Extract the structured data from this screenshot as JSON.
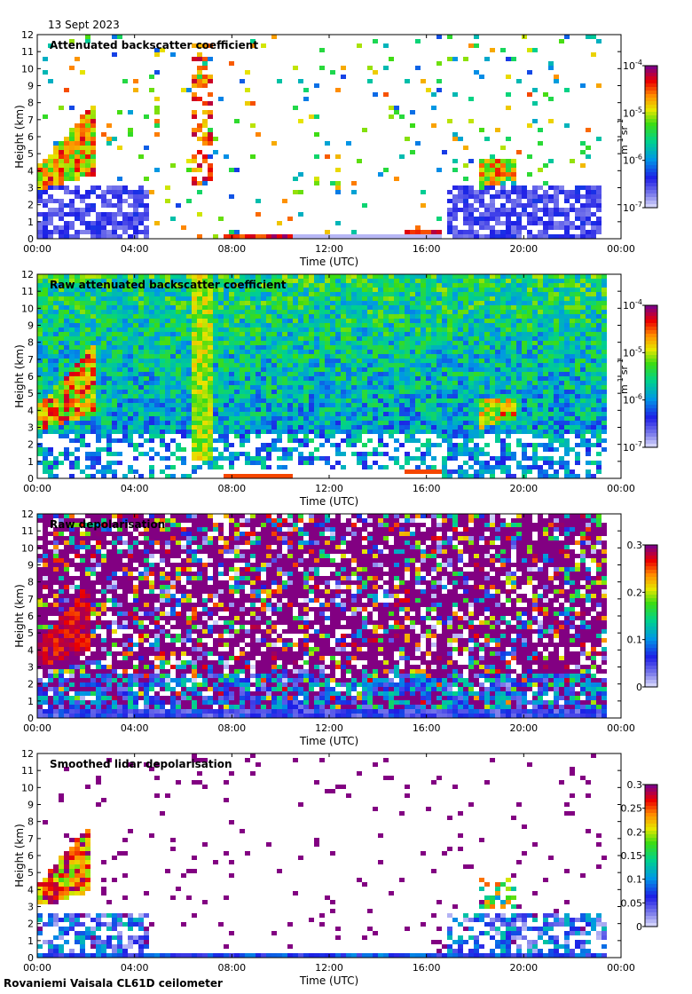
{
  "header": {
    "date": "13 Sept 2023"
  },
  "footer": {
    "site": "Rovaniemi Vaisala CL61D ceilometer"
  },
  "chart_data": [
    {
      "type": "heatmap",
      "title": "Attenuated backscatter coefficient",
      "xlabel": "Time (UTC)",
      "ylabel": "Height (km)",
      "x_ticks": [
        "00:00",
        "04:00",
        "08:00",
        "12:00",
        "16:00",
        "20:00",
        "00:00"
      ],
      "y_ticks": [
        "0",
        "1",
        "2",
        "3",
        "4",
        "5",
        "6",
        "7",
        "8",
        "9",
        "10",
        "11",
        "12"
      ],
      "xlim": [
        0,
        24
      ],
      "ylim": [
        0,
        12
      ],
      "data_end_hour": 23.3,
      "colorbar": {
        "scale": "log",
        "range": [
          1e-07,
          0.0001
        ],
        "tick_labels": [
          {
            "base": "10",
            "exp": "-4",
            "value": 0.0001
          },
          {
            "base": "10",
            "exp": "-5",
            "value": 1e-05
          },
          {
            "base": "10",
            "exp": "-6",
            "value": 1e-06
          },
          {
            "base": "10",
            "exp": "-7",
            "value": 1e-07
          }
        ],
        "unit": {
          "a": "m",
          "a_exp": "-1",
          "b": "sr",
          "b_exp": "-1"
        }
      }
    },
    {
      "type": "heatmap",
      "title": "Raw attenuated backscatter coefficient",
      "xlabel": "Time (UTC)",
      "ylabel": "Height (km)",
      "x_ticks": [
        "00:00",
        "04:00",
        "08:00",
        "12:00",
        "16:00",
        "20:00",
        "00:00"
      ],
      "y_ticks": [
        "0",
        "1",
        "2",
        "3",
        "4",
        "5",
        "6",
        "7",
        "8",
        "9",
        "10",
        "11",
        "12"
      ],
      "xlim": [
        0,
        24
      ],
      "ylim": [
        0,
        12
      ],
      "data_end_hour": 23.3,
      "colorbar": {
        "scale": "log",
        "range": [
          1e-07,
          0.0001
        ],
        "tick_labels": [
          {
            "base": "10",
            "exp": "-4",
            "value": 0.0001
          },
          {
            "base": "10",
            "exp": "-5",
            "value": 1e-05
          },
          {
            "base": "10",
            "exp": "-6",
            "value": 1e-06
          },
          {
            "base": "10",
            "exp": "-7",
            "value": 1e-07
          }
        ],
        "unit": {
          "a": "m",
          "a_exp": "-1",
          "b": "sr",
          "b_exp": "-1"
        }
      }
    },
    {
      "type": "heatmap",
      "title": "Raw depolarisation",
      "xlabel": "Time (UTC)",
      "ylabel": "Height (km)",
      "x_ticks": [
        "00:00",
        "04:00",
        "08:00",
        "12:00",
        "16:00",
        "20:00",
        "00:00"
      ],
      "y_ticks": [
        "0",
        "1",
        "2",
        "3",
        "4",
        "5",
        "6",
        "7",
        "8",
        "9",
        "10",
        "11",
        "12"
      ],
      "xlim": [
        0,
        24
      ],
      "ylim": [
        0,
        12
      ],
      "data_end_hour": 23.3,
      "colorbar": {
        "scale": "linear",
        "range": [
          0,
          0.3
        ],
        "tick_labels": [
          {
            "base": "0.3",
            "value": 0.3
          },
          {
            "base": "0.2",
            "value": 0.2
          },
          {
            "base": "0.1",
            "value": 0.1
          },
          {
            "base": "0",
            "value": 0
          }
        ],
        "unit": null
      }
    },
    {
      "type": "heatmap",
      "title": "Smoothed lidar depolarisation",
      "xlabel": "Time (UTC)",
      "ylabel": "Height (km)",
      "x_ticks": [
        "00:00",
        "04:00",
        "08:00",
        "12:00",
        "16:00",
        "20:00",
        "00:00"
      ],
      "y_ticks": [
        "0",
        "1",
        "2",
        "3",
        "4",
        "5",
        "6",
        "7",
        "8",
        "9",
        "10",
        "11",
        "12"
      ],
      "xlim": [
        0,
        24
      ],
      "ylim": [
        0,
        12
      ],
      "data_end_hour": 23.3,
      "colorbar": {
        "scale": "linear",
        "range": [
          0,
          0.3
        ],
        "tick_labels": [
          {
            "base": "0.3",
            "value": 0.3
          },
          {
            "base": "0.25",
            "value": 0.25
          },
          {
            "base": "0.2",
            "value": 0.2
          },
          {
            "base": "0.15",
            "value": 0.15
          },
          {
            "base": "0.1",
            "value": 0.1
          },
          {
            "base": "0.05",
            "value": 0.05
          },
          {
            "base": "0",
            "value": 0
          }
        ],
        "unit": null
      }
    }
  ]
}
